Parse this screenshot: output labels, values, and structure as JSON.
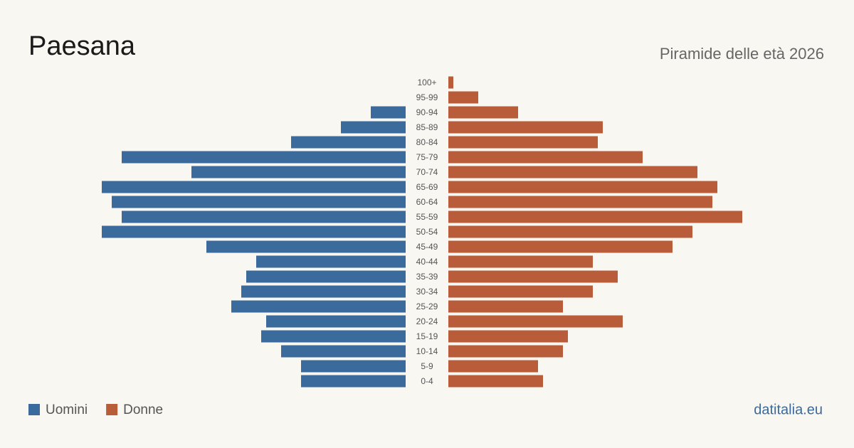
{
  "chart_data": {
    "type": "pyramid",
    "title": "Paesana",
    "subtitle": "Piramide delle età 2026",
    "source": "datitalia.eu",
    "categories": [
      "100+",
      "95-99",
      "90-94",
      "85-89",
      "80-84",
      "75-79",
      "70-74",
      "65-69",
      "60-64",
      "55-59",
      "50-54",
      "45-49",
      "40-44",
      "35-39",
      "30-34",
      "25-29",
      "20-24",
      "15-19",
      "10-14",
      "5-9",
      "0-4"
    ],
    "series": [
      {
        "name": "Uomini",
        "color": "#3b6a9c",
        "values": [
          0,
          0,
          7,
          13,
          23,
          57,
          43,
          61,
          59,
          57,
          61,
          40,
          30,
          32,
          33,
          35,
          28,
          29,
          25,
          21,
          21
        ]
      },
      {
        "name": "Donne",
        "color": "#b95c3a",
        "values": [
          1,
          6,
          14,
          31,
          30,
          39,
          50,
          54,
          53,
          59,
          49,
          45,
          29,
          34,
          29,
          23,
          35,
          24,
          23,
          18,
          19
        ]
      }
    ]
  }
}
